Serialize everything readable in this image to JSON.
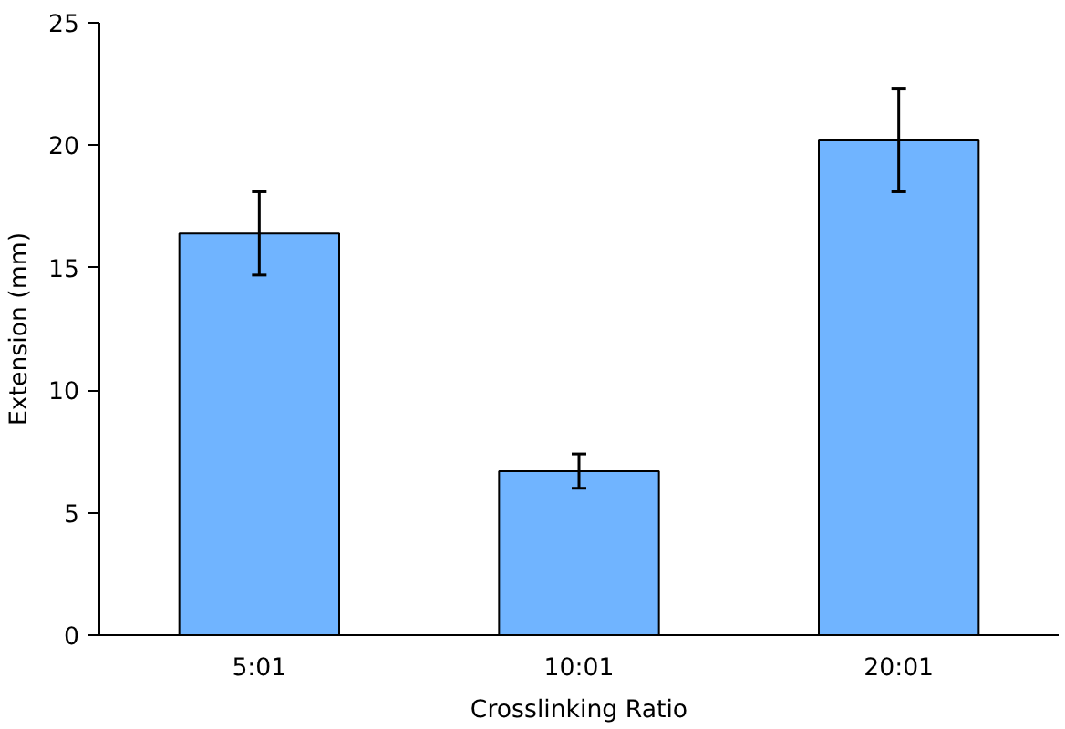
{
  "chart_data": {
    "type": "bar",
    "xlabel": "Crosslinking Ratio",
    "ylabel": "Extension (mm)",
    "categories": [
      "5:01",
      "10:01",
      "20:01"
    ],
    "values": [
      16.4,
      6.7,
      20.2
    ],
    "errors": [
      1.7,
      0.7,
      2.1
    ],
    "color": "#70b4ff",
    "ylim": [
      0,
      25
    ],
    "yticks": [
      0,
      5,
      10,
      15,
      20,
      25
    ],
    "grid": false
  }
}
